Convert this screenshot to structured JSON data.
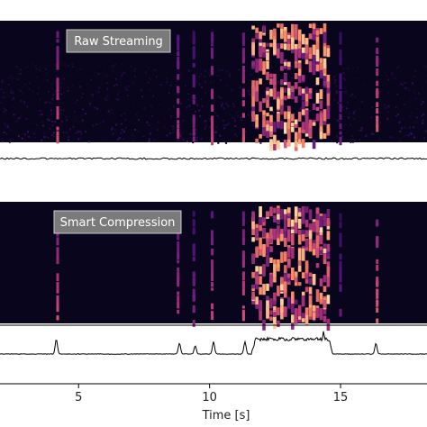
{
  "chart_data": [
    {
      "type": "heatmap",
      "panel": "top",
      "label": "Raw Streaming",
      "x_unit": "s",
      "colormap": "magma",
      "bursts": [
        {
          "t": 4.2,
          "strength": 0.55,
          "kind": "streak"
        },
        {
          "t": 8.8,
          "strength": 0.45,
          "kind": "streak"
        },
        {
          "t": 9.4,
          "strength": 0.35,
          "kind": "streak"
        },
        {
          "t": 10.1,
          "strength": 0.5,
          "kind": "streak"
        },
        {
          "t": 11.3,
          "strength": 0.55,
          "kind": "streak"
        },
        {
          "t_start": 11.6,
          "t_end": 14.6,
          "strength": 0.85,
          "kind": "chorus"
        },
        {
          "t": 15.0,
          "strength": 0.3,
          "kind": "streak"
        },
        {
          "t": 16.4,
          "strength": 0.6,
          "kind": "streak"
        }
      ],
      "background_noise": 0.22
    },
    {
      "type": "line",
      "panel": "top-trace",
      "x_unit": "s",
      "profile": "flat",
      "baseline": 0.0,
      "noise": 0.03
    },
    {
      "type": "heatmap",
      "panel": "bottom",
      "label": "Smart Compression",
      "x_unit": "s",
      "colormap": "magma",
      "bursts": [
        {
          "t": 4.2,
          "strength": 0.55,
          "kind": "streak"
        },
        {
          "t": 8.8,
          "strength": 0.45,
          "kind": "streak"
        },
        {
          "t": 9.4,
          "strength": 0.35,
          "kind": "streak"
        },
        {
          "t": 10.1,
          "strength": 0.5,
          "kind": "streak"
        },
        {
          "t": 11.3,
          "strength": 0.55,
          "kind": "streak"
        },
        {
          "t_start": 11.6,
          "t_end": 14.6,
          "strength": 0.85,
          "kind": "chorus"
        },
        {
          "t": 15.0,
          "strength": 0.3,
          "kind": "streak"
        },
        {
          "t": 16.4,
          "strength": 0.6,
          "kind": "streak"
        }
      ],
      "background_noise": 0.0
    },
    {
      "type": "line",
      "panel": "bottom-trace",
      "x_unit": "s",
      "baseline": 0.0,
      "peaks": [
        {
          "t": 4.15,
          "height": 0.55
        },
        {
          "t": 8.85,
          "height": 0.4
        },
        {
          "t": 9.45,
          "height": 0.3
        },
        {
          "t": 10.15,
          "height": 0.45
        },
        {
          "t": 11.35,
          "height": 0.45
        },
        {
          "t": 14.35,
          "height": 0.85
        },
        {
          "t": 16.35,
          "height": 0.4
        }
      ],
      "plateau": {
        "t_start": 11.6,
        "t_end": 14.7,
        "height": 0.55
      }
    }
  ],
  "x_axis": {
    "label": "Time [s]",
    "xlim": [
      2.0,
      18.3
    ],
    "ticks": [
      5,
      10,
      15
    ],
    "tick_labels": [
      "5",
      "10",
      "15"
    ]
  }
}
